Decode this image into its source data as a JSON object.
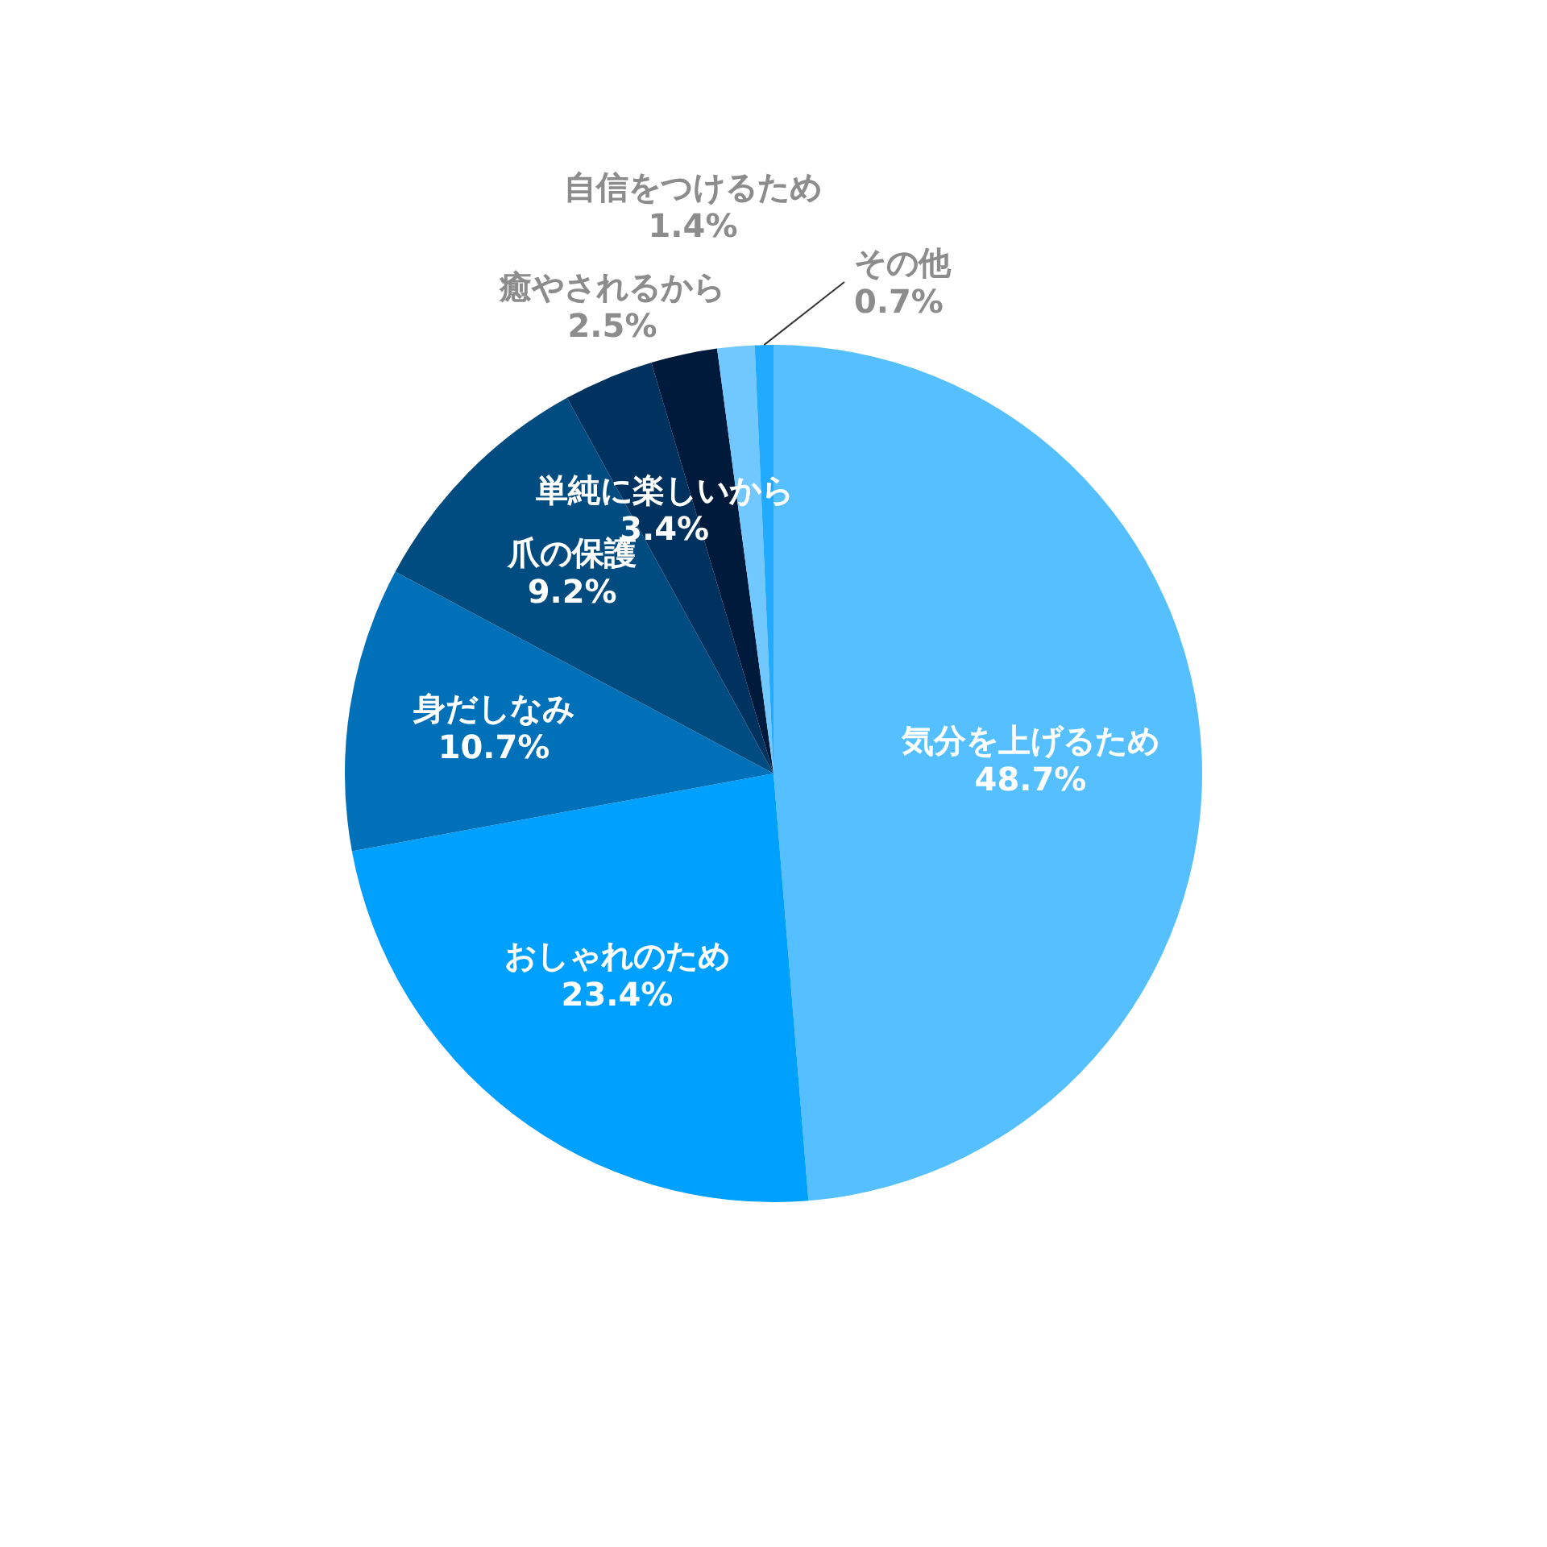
{
  "chart_data": {
    "type": "pie",
    "categories": [
      "気分を上げるため",
      "おしゃれのため",
      "身だしなみ",
      "爪の保護",
      "単純に楽しいから",
      "癒やされるから",
      "自信をつけるため",
      "その他"
    ],
    "values": [
      48.7,
      23.4,
      10.7,
      9.2,
      3.4,
      2.5,
      1.4,
      0.7
    ],
    "value_labels": [
      "48.7%",
      "23.4%",
      "10.7%",
      "9.2%",
      "3.4%",
      "2.5%",
      "1.4%",
      "0.7%"
    ],
    "colors": [
      "#55bfff",
      "#00a0ff",
      "#0070b8",
      "#004c80",
      "#00325f",
      "#001a3c",
      "#70c8ff",
      "#22aaff"
    ],
    "legend": false
  }
}
